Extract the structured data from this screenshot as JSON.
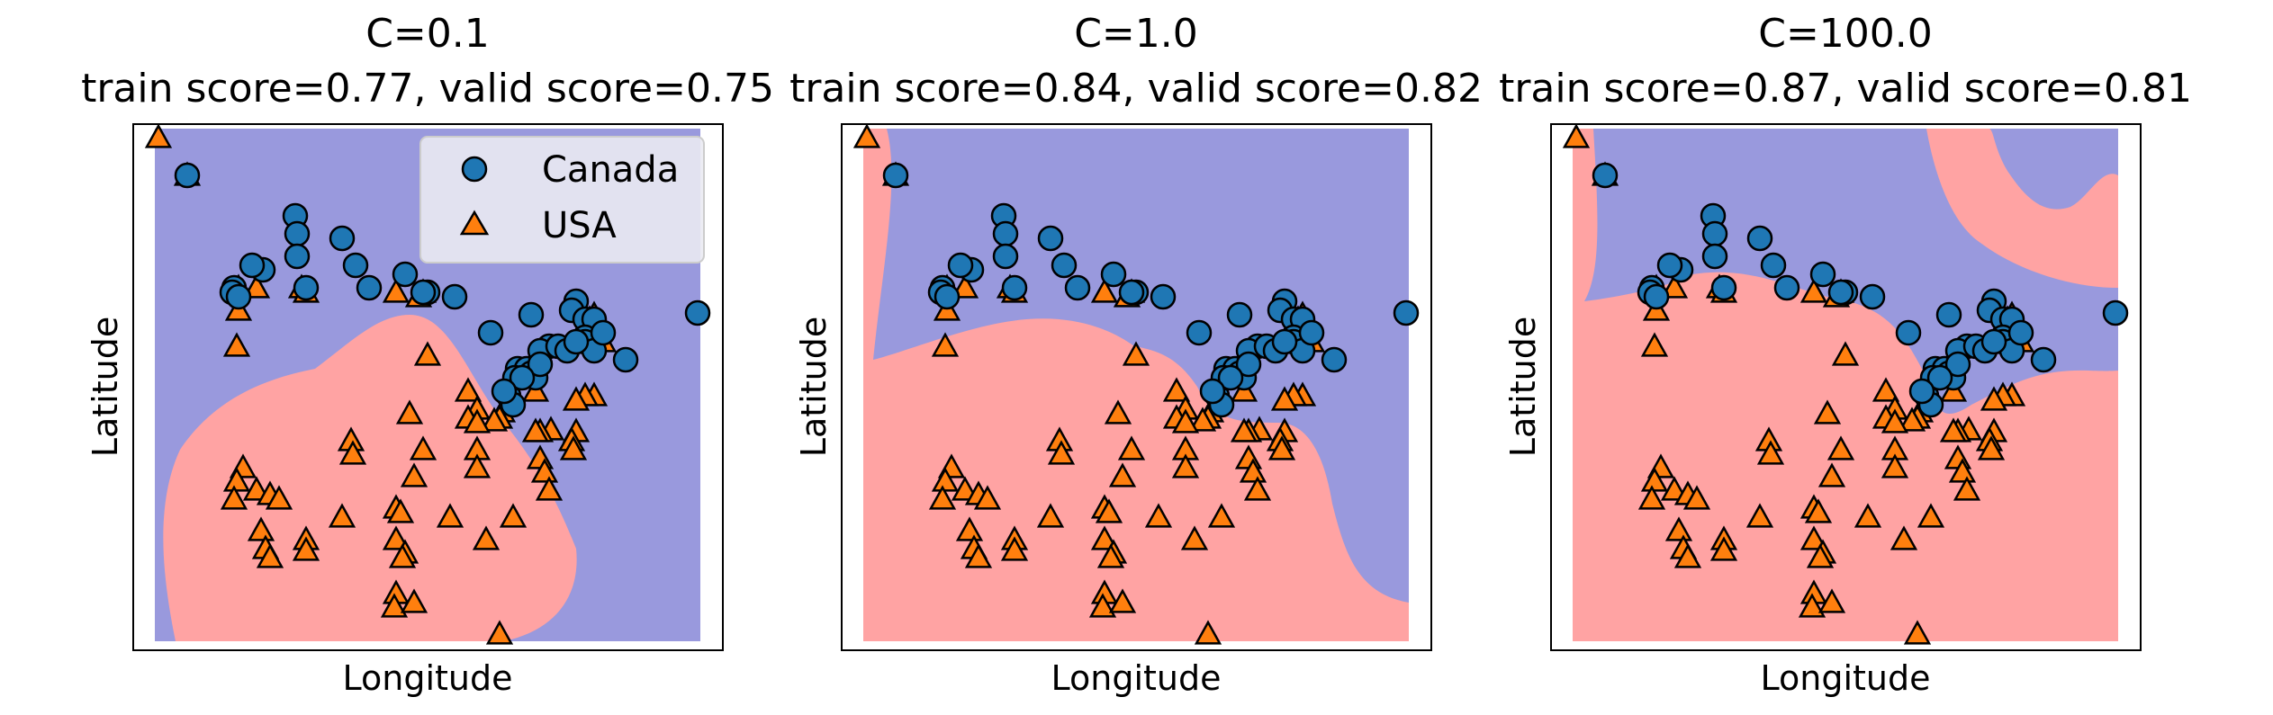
{
  "colors": {
    "class_a_region": "#9999dd",
    "class_b_region": "#ffa3a3",
    "canada_marker": "#1f77b4",
    "usa_marker": "#ff7f0e",
    "marker_edge": "#000000"
  },
  "legend": {
    "placement": "upper-right of first panel",
    "entries": [
      {
        "label": "Canada",
        "marker": "circle"
      },
      {
        "label": "USA",
        "marker": "triangle"
      }
    ]
  },
  "chart_data": [
    {
      "type": "scatter",
      "title_line1": "C=0.1",
      "title_line2": "train score=0.77, valid score=0.75",
      "xlabel": "Longitude",
      "ylabel": "Latitude",
      "ticks_shown": false,
      "decision_boundary": "smooth, low-flexibility"
    },
    {
      "type": "scatter",
      "title_line1": "C=1.0",
      "title_line2": "train score=0.84, valid score=0.82",
      "xlabel": "Longitude",
      "ylabel": "Latitude",
      "ticks_shown": false,
      "decision_boundary": "moderately flexible"
    },
    {
      "type": "scatter",
      "title_line1": "C=100.0",
      "title_line2": "train score=0.87, valid score=0.81",
      "xlabel": "Longitude",
      "ylabel": "Latitude",
      "ticks_shown": false,
      "decision_boundary": "highly flexible"
    }
  ]
}
